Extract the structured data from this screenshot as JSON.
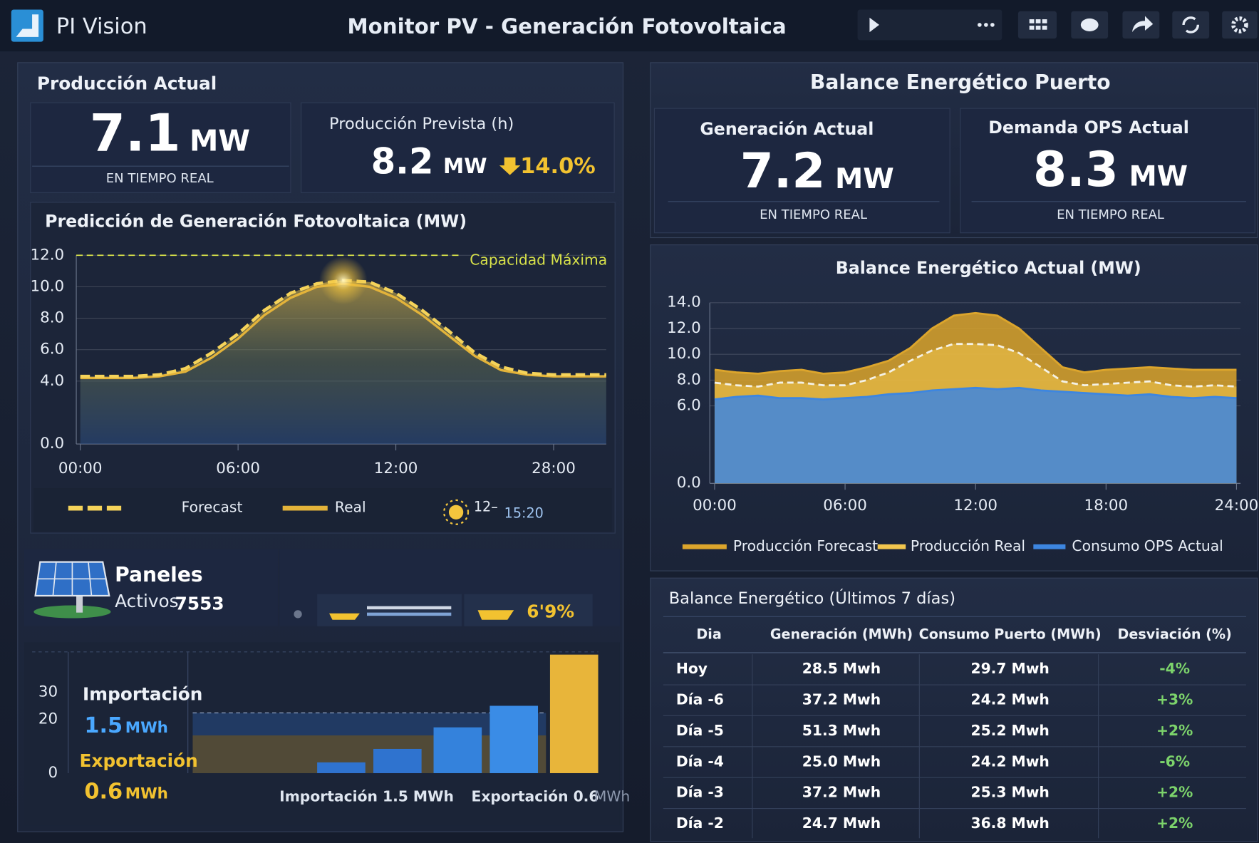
{
  "header": {
    "app": "PI Vision",
    "title": "Monitor PV - Generación Fotovoltaica"
  },
  "produccion": {
    "title": "Producción Actual",
    "value": "7.1",
    "unit": "MW",
    "note": "EN TIEMPO REAL",
    "prevista": {
      "title": "Producción Prevista (h)",
      "value": "8.2",
      "unit": "MW",
      "change": "14.0%"
    }
  },
  "paneles": {
    "title": "Paneles",
    "label": "Activos.",
    "count": "7553",
    "ratio": "6'9%"
  },
  "intercambio": {
    "import_label": "Importación",
    "import_value": "1.5",
    "import_unit": "MWh",
    "export_label": "Exportación",
    "export_value": "0.6",
    "export_unit": "MWh",
    "footer_import": "Importación 1.5 MWh",
    "footer_export": "Exportación 0.6",
    "footer_unit": "MWh"
  },
  "balance": {
    "title": "Balance Energético Puerto",
    "generacion": {
      "title": "Generación Actual",
      "value": "7.2",
      "unit": "MW",
      "note": "EN TIEMPO REAL"
    },
    "demanda": {
      "title": "Demanda OPS Actual",
      "value": "8.3",
      "unit": "MW",
      "note": "EN TIEMPO REAL"
    }
  },
  "table": {
    "title": "Balance Energético (Últimos 7 días)",
    "columns": [
      "Dia",
      "Generación (MWh)",
      "Consumo Puerto (MWh)",
      "Desviación (%)"
    ],
    "rows": [
      [
        "Hoy",
        "28.5 Mwh",
        "29.7 Mwh",
        "-4%"
      ],
      [
        "Día -6",
        "37.2 Mwh",
        "24.2 Mwh",
        "+3%"
      ],
      [
        "Día -5",
        "51.3 Mwh",
        "25.2 Mwh",
        "+2%"
      ],
      [
        "Día -4",
        "25.0 Mwh",
        "24.2 Mwh",
        "-6%"
      ],
      [
        "Día -3",
        "37.2 Mwh",
        "25.3 Mwh",
        "+2%"
      ],
      [
        "Día -2",
        "24.7 Mwh",
        "36.8 Mwh",
        "+2%"
      ]
    ]
  },
  "chart_data": [
    {
      "type": "line",
      "title": "Predicción de Generación Fotovoltaica (MW)",
      "categories": [
        "00:00",
        null,
        null,
        null,
        null,
        null,
        "06:00",
        null,
        null,
        null,
        null,
        null,
        "12:00",
        null,
        null,
        null,
        null,
        null,
        "28:00",
        null,
        null
      ],
      "series": [
        {
          "name": "Forecast",
          "color": "#f5d35a",
          "values": [
            4.3,
            4.3,
            4.3,
            4.4,
            4.8,
            5.8,
            7.0,
            8.5,
            9.6,
            10.2,
            10.4,
            10.3,
            9.6,
            8.5,
            7.2,
            5.8,
            4.9,
            4.5,
            4.4,
            4.4,
            4.4
          ]
        },
        {
          "name": "Real",
          "color": "#e3b33a",
          "values": [
            4.2,
            4.2,
            4.2,
            4.3,
            4.6,
            5.5,
            6.7,
            8.2,
            9.3,
            10.0,
            10.2,
            10.0,
            9.3,
            8.2,
            6.9,
            5.6,
            4.7,
            4.4,
            4.3,
            4.3,
            4.3
          ]
        }
      ],
      "ylim": [
        0,
        12
      ],
      "yticks": [
        {
          "value": 0,
          "label": "0.0"
        },
        {
          "value": 4,
          "label": "4.0"
        },
        {
          "value": 6,
          "label": "6.0"
        },
        {
          "value": 8,
          "label": "8.0"
        },
        {
          "value": 10,
          "label": "10.0"
        },
        {
          "value": 12,
          "label": "12.0"
        }
      ],
      "reference_line": {
        "value": 12,
        "label": "Capacidad Máxima",
        "color": "#d8e24a"
      },
      "marker_labels": [
        "12–",
        "15:20"
      ],
      "grid": true
    },
    {
      "type": "area",
      "title": "Balance Energético Actual (MW)",
      "x": [
        0,
        1,
        2,
        3,
        4,
        5,
        6,
        7,
        8,
        9,
        10,
        11,
        12,
        13,
        14,
        15,
        16,
        17,
        18,
        19,
        20,
        21,
        22,
        23,
        24
      ],
      "xlim": [
        0,
        24
      ],
      "xticks": [
        {
          "value": 0,
          "label": "00:00"
        },
        {
          "value": 6,
          "label": "06:00"
        },
        {
          "value": 12,
          "label": "12:00"
        },
        {
          "value": 18,
          "label": "18:00"
        },
        {
          "value": 24,
          "label": "24:00"
        }
      ],
      "ylim": [
        0,
        14
      ],
      "yticks": [
        {
          "value": 0,
          "label": "0.0"
        },
        {
          "value": 6,
          "label": "6.0"
        },
        {
          "value": 8,
          "label": "8.0"
        },
        {
          "value": 10,
          "label": "10.0"
        },
        {
          "value": 12,
          "label": "12.0"
        },
        {
          "value": 14,
          "label": "14.0"
        }
      ],
      "series": [
        {
          "name": "Producción Forecast",
          "color": "#dca52c",
          "values": [
            8.8,
            8.6,
            8.5,
            8.7,
            8.8,
            8.5,
            8.6,
            9.0,
            9.5,
            10.5,
            12.0,
            13.0,
            13.2,
            13.0,
            12.0,
            10.5,
            9.0,
            8.6,
            8.8,
            8.9,
            9.0,
            8.9,
            8.8,
            8.8,
            8.8
          ]
        },
        {
          "name": "Producción Real",
          "color": "#f2c64e",
          "values": [
            7.8,
            7.6,
            7.5,
            7.8,
            7.8,
            7.6,
            7.6,
            8.0,
            8.6,
            9.5,
            10.3,
            10.8,
            10.8,
            10.7,
            10.1,
            9.0,
            7.9,
            7.6,
            7.7,
            7.8,
            7.9,
            7.6,
            7.5,
            7.6,
            7.5
          ]
        },
        {
          "name": "Consumo OPS Actual",
          "color": "#3d86e0",
          "values": [
            6.5,
            6.7,
            6.8,
            6.6,
            6.6,
            6.5,
            6.6,
            6.7,
            6.9,
            7.0,
            7.2,
            7.3,
            7.4,
            7.3,
            7.4,
            7.2,
            7.1,
            7.0,
            6.9,
            6.8,
            6.9,
            6.7,
            6.6,
            6.7,
            6.6
          ]
        }
      ],
      "grid": true
    },
    {
      "type": "bar",
      "categories": [
        null,
        null,
        null,
        null,
        null
      ],
      "values": [
        4,
        9,
        17,
        25,
        44
      ],
      "colors": [
        "#2f73cf",
        "#2f73cf",
        "#3482dc",
        "#3a8ce6",
        "#e8b53a"
      ],
      "ylim": [
        0,
        45
      ],
      "yticks": [
        0,
        20,
        30
      ]
    }
  ]
}
